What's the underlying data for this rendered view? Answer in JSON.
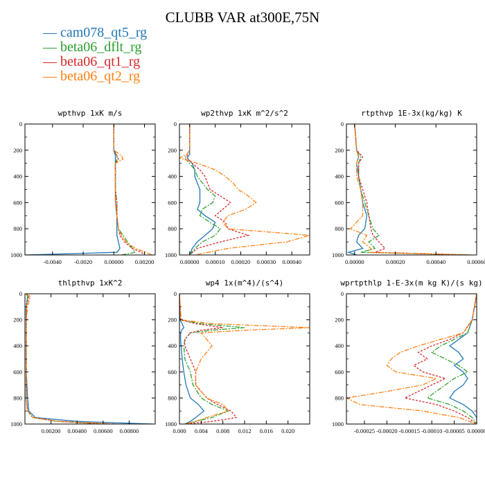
{
  "figure_title": "CLUBB VAR at300E,75N",
  "legend": [
    {
      "name": "cam078_qt5_rg",
      "color": "#1f77b4"
    },
    {
      "name": "beta06_dflt_rg",
      "color": "#2ca02c"
    },
    {
      "name": "beta06_qt1_rg",
      "color": "#d62728"
    },
    {
      "name": "beta06_qt2_rg",
      "color": "#ff7f0e"
    }
  ],
  "chart_data": [
    {
      "type": "line",
      "title": "wpthvp  1xK m/s",
      "xlim": [
        -0.0058,
        0.0027
      ],
      "ylim": [
        1000,
        0
      ],
      "xticks": [
        "-0.0040",
        "-0.0020",
        "0.00000",
        "0.00200"
      ],
      "xtick_values": [
        -0.004,
        -0.002,
        0.0,
        0.002
      ],
      "yticks": [
        0,
        200,
        400,
        600,
        800,
        1000
      ],
      "y": [
        0,
        100,
        200,
        240,
        270,
        300,
        400,
        500,
        600,
        700,
        800,
        850,
        900,
        950,
        980,
        1000
      ],
      "series": [
        {
          "name": "cam078_qt5_rg",
          "x": [
            0.0,
            0.0,
            0.0,
            0.0001,
            0.0001,
            0.0001,
            0.0001,
            0.0001,
            0.0001,
            0.0002,
            0.0002,
            0.0002,
            0.0003,
            0.0004,
            0.0002,
            -0.0058
          ]
        },
        {
          "name": "beta06_dflt_rg",
          "x": [
            0.0,
            0.0,
            0.0,
            0.0002,
            0.0002,
            0.0001,
            0.0001,
            0.0001,
            0.0002,
            0.0002,
            0.0003,
            0.0006,
            0.0009,
            0.0012,
            0.0014,
            0.0005
          ]
        },
        {
          "name": "beta06_qt1_rg",
          "x": [
            0.0,
            0.0,
            0.0,
            0.0002,
            0.0003,
            0.0001,
            0.0001,
            0.0001,
            0.0002,
            0.0002,
            0.0003,
            0.0004,
            0.0007,
            0.0012,
            0.0018,
            0.002
          ]
        },
        {
          "name": "beta06_qt2_rg",
          "x": [
            0.0,
            0.0,
            0.0,
            0.0005,
            0.0006,
            0.0001,
            0.0001,
            0.0001,
            0.0001,
            0.0002,
            0.0003,
            0.0005,
            0.0008,
            0.0014,
            0.0021,
            0.0025
          ]
        }
      ]
    },
    {
      "type": "line",
      "title": "wp2thvp  1xK m^2/s^2",
      "xlim": [
        -4e-05,
        0.00047
      ],
      "ylim": [
        1000,
        0
      ],
      "xticks": [
        "0.00000",
        "0.00010",
        "0.00020",
        "0.00030",
        "0.00040"
      ],
      "xtick_values": [
        0.0,
        0.0001,
        0.0002,
        0.0003,
        0.0004
      ],
      "yticks": [
        0,
        200,
        400,
        600,
        800,
        1000
      ],
      "y": [
        0,
        200,
        230,
        260,
        300,
        350,
        400,
        450,
        500,
        550,
        600,
        650,
        700,
        750,
        800,
        850,
        900,
        950,
        1000
      ],
      "series": [
        {
          "name": "cam078_qt5_rg",
          "x": [
            0.0,
            0.0,
            0.0,
            -1e-05,
            1e-05,
            2e-05,
            2e-05,
            3e-05,
            4e-05,
            4e-05,
            4e-05,
            3e-05,
            6e-05,
            0.0001,
            9e-05,
            6e-05,
            3e-05,
            1e-05,
            0.0
          ]
        },
        {
          "name": "beta06_dflt_rg",
          "x": [
            0.0,
            0.0,
            -1e-05,
            -2e-05,
            0.0,
            2e-05,
            3e-05,
            5e-05,
            7e-05,
            0.0001,
            9e-05,
            5e-05,
            4e-05,
            8e-05,
            0.00012,
            0.0001,
            5e-05,
            2e-05,
            0.0
          ]
        },
        {
          "name": "beta06_qt1_rg",
          "x": [
            0.0,
            0.0,
            -1e-05,
            -1e-05,
            1e-05,
            4e-05,
            6e-05,
            7e-05,
            8e-05,
            0.00012,
            0.00016,
            0.00013,
            0.0001,
            0.00014,
            0.00015,
            0.00023,
            0.00012,
            3e-05,
            0.0
          ]
        },
        {
          "name": "beta06_qt2_rg",
          "x": [
            0.0,
            0.0,
            -1e-05,
            -4e-05,
            3e-05,
            0.0001,
            0.00014,
            0.00017,
            0.00019,
            0.00023,
            0.00026,
            0.00022,
            0.00015,
            0.00013,
            0.00015,
            0.00047,
            0.00038,
            0.00015,
            2e-05
          ]
        }
      ]
    },
    {
      "type": "line",
      "title": "rtpthvp  1E-3x(kg/kg) K",
      "xlim": [
        -4e-05,
        0.0006
      ],
      "ylim": [
        1000,
        0
      ],
      "xticks": [
        "0.00000",
        "0.00020",
        "0.00040",
        "0.00060"
      ],
      "xtick_values": [
        0.0,
        0.0002,
        0.0004,
        0.0006
      ],
      "yticks": [
        0,
        200,
        400,
        600,
        800,
        1000
      ],
      "y": [
        0,
        200,
        250,
        300,
        400,
        500,
        600,
        700,
        800,
        850,
        900,
        950,
        980,
        1000
      ],
      "series": [
        {
          "name": "cam078_qt5_rg",
          "x": [
            0.0,
            1e-05,
            2e-05,
            1e-05,
            2e-05,
            3e-05,
            4e-05,
            6e-05,
            5e-05,
            2e-05,
            1e-05,
            4e-05,
            -3e-05,
            1e-05
          ]
        },
        {
          "name": "beta06_dflt_rg",
          "x": [
            0.0,
            1e-05,
            3e-05,
            2e-05,
            2e-05,
            3e-05,
            5e-05,
            7e-05,
            9e-05,
            0.00012,
            7e-05,
            0.0001,
            3e-05,
            0.00058
          ]
        },
        {
          "name": "beta06_qt1_rg",
          "x": [
            0.0,
            1e-05,
            4e-05,
            2e-05,
            2e-05,
            4e-05,
            6e-05,
            7e-05,
            8e-05,
            9e-05,
            0.00012,
            0.00015,
            0.0001,
            0.00056
          ]
        },
        {
          "name": "beta06_qt2_rg",
          "x": [
            0.0,
            1e-05,
            2e-05,
            1e-05,
            1e-05,
            3e-05,
            4e-05,
            4e-05,
            -2e-05,
            6e-05,
            4e-05,
            8e-05,
            7e-05,
            0.00057
          ]
        }
      ]
    },
    {
      "type": "line",
      "title": "thlpthvp  1xK^2",
      "xlim": [
        0.0,
        0.01
      ],
      "ylim": [
        1000,
        0
      ],
      "xticks": [
        "0.00200",
        "0.00400",
        "0.00600",
        "0.00800"
      ],
      "xtick_values": [
        0.002,
        0.004,
        0.006,
        0.008
      ],
      "yticks": [
        0,
        200,
        400,
        600,
        800,
        1000
      ],
      "y": [
        0,
        20,
        100,
        200,
        400,
        600,
        800,
        900,
        950,
        980,
        1000
      ],
      "series": [
        {
          "name": "cam078_qt5_rg",
          "x": [
            0.0001,
            0.0002,
            0.0001,
            0.0001,
            0.0001,
            0.0001,
            0.0002,
            0.0003,
            0.0008,
            0.004,
            0.0098
          ]
        },
        {
          "name": "beta06_dflt_rg",
          "x": [
            0.0001,
            0.0002,
            0.0001,
            0.0001,
            0.0001,
            0.0001,
            0.0001,
            0.0002,
            0.0006,
            0.0025,
            0.006
          ]
        },
        {
          "name": "beta06_qt1_rg",
          "x": [
            0.0001,
            0.0003,
            0.0001,
            0.0001,
            0.0001,
            0.0001,
            0.0001,
            0.0002,
            0.0006,
            0.0025,
            0.0065
          ]
        },
        {
          "name": "beta06_qt2_rg",
          "x": [
            0.0001,
            0.0004,
            0.0002,
            0.0001,
            0.0001,
            0.0001,
            0.0001,
            0.0002,
            0.0006,
            0.0026,
            0.007
          ]
        }
      ]
    },
    {
      "type": "line",
      "title": "wp4  1x(m^4)/(s^4)",
      "xlim": [
        0.0,
        0.024
      ],
      "ylim": [
        1000,
        0
      ],
      "xticks": [
        "0.000",
        "0.004",
        "0.008",
        "0.012",
        "0.016",
        "0.020"
      ],
      "xtick_values": [
        0.0,
        0.004,
        0.008,
        0.012,
        0.016,
        0.02
      ],
      "yticks": [
        0,
        200,
        400,
        600,
        800,
        1000
      ],
      "y": [
        0,
        200,
        230,
        260,
        280,
        300,
        350,
        400,
        500,
        600,
        700,
        800,
        850,
        900,
        950,
        980,
        1000
      ],
      "series": [
        {
          "name": "cam078_qt5_rg",
          "x": [
            0.0,
            0.0001,
            0.0005,
            0.0008,
            0.0004,
            0.0002,
            0.0002,
            0.0003,
            0.0005,
            0.0008,
            0.0012,
            0.002,
            0.0035,
            0.0045,
            0.003,
            0.002,
            0.001
          ]
        },
        {
          "name": "beta06_dflt_rg",
          "x": [
            0.0,
            0.0002,
            0.004,
            0.012,
            0.006,
            0.002,
            0.001,
            0.0008,
            0.001,
            0.002,
            0.0025,
            0.004,
            0.006,
            0.009,
            0.006,
            0.003,
            0.001
          ]
        },
        {
          "name": "beta06_qt1_rg",
          "x": [
            0.0,
            0.0002,
            0.003,
            0.008,
            0.004,
            0.002,
            0.001,
            0.001,
            0.002,
            0.003,
            0.003,
            0.005,
            0.007,
            0.0095,
            0.0105,
            0.006,
            0.001
          ]
        },
        {
          "name": "beta06_qt2_rg",
          "x": [
            0.0,
            0.0003,
            0.006,
            0.024,
            0.012,
            0.004,
            0.005,
            0.006,
            0.004,
            0.003,
            0.003,
            0.005,
            0.008,
            0.009,
            0.005,
            0.003,
            0.001
          ]
        }
      ]
    },
    {
      "type": "line",
      "title": "wprtpthlp  1-E-3x(m kg K)/(s kg)",
      "xlim": [
        -0.00029,
        0.0
      ],
      "ylim": [
        1000,
        0
      ],
      "xticks": [
        "-0.00025",
        "-0.00020",
        "-0.00015",
        "-0.00010",
        "-0.00005",
        "0.00000"
      ],
      "xtick_values": [
        -0.00025,
        -0.0002,
        -0.00015,
        -0.0001,
        -5e-05,
        0.0
      ],
      "yticks": [
        0,
        200,
        400,
        600,
        800,
        1000
      ],
      "y": [
        0,
        200,
        300,
        350,
        400,
        450,
        500,
        550,
        600,
        650,
        700,
        750,
        800,
        850,
        900,
        950,
        1000
      ],
      "series": [
        {
          "name": "cam078_qt5_rg",
          "x": [
            0.0,
            -1e-05,
            -2e-05,
            -4e-05,
            -6e-05,
            -4e-05,
            -3e-05,
            -5e-05,
            -3e-05,
            -2e-05,
            -3e-05,
            -5e-05,
            -6e-05,
            -3e-05,
            -1e-05,
            0.0,
            0.0
          ]
        },
        {
          "name": "beta06_dflt_rg",
          "x": [
            0.0,
            -1e-05,
            -2e-05,
            -5e-05,
            -8e-05,
            -0.0001,
            -7e-05,
            -4e-05,
            -2e-05,
            -5e-05,
            -7e-05,
            -9e-05,
            -0.00011,
            -6e-05,
            -3e-05,
            -1e-05,
            0.0
          ]
        },
        {
          "name": "beta06_qt1_rg",
          "x": [
            0.0,
            -1e-05,
            -3e-05,
            -6e-05,
            -0.0001,
            -0.00013,
            -0.00011,
            -0.00014,
            -0.00012,
            -7e-05,
            -0.0001,
            -0.00013,
            -0.00016,
            -9e-05,
            -5e-05,
            -2e-05,
            0.0
          ]
        },
        {
          "name": "beta06_qt2_rg",
          "x": [
            0.0,
            -1e-05,
            -3e-05,
            -8e-05,
            -0.00013,
            -0.00017,
            -0.00019,
            -0.0002,
            -0.00018,
            -9e-05,
            -0.00012,
            -0.0002,
            -0.00029,
            -0.00026,
            -0.00012,
            -4e-05,
            0.0
          ]
        }
      ]
    }
  ]
}
